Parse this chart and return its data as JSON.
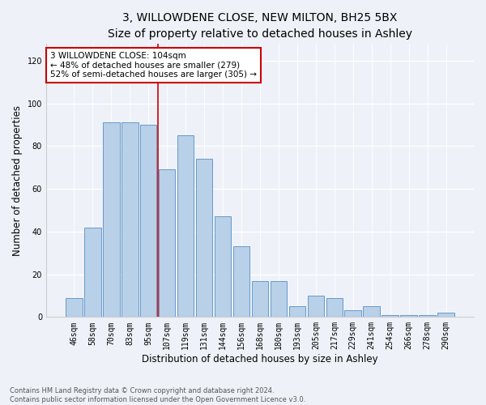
{
  "title": "3, WILLOWDENE CLOSE, NEW MILTON, BH25 5BX",
  "subtitle": "Size of property relative to detached houses in Ashley",
  "xlabel": "Distribution of detached houses by size in Ashley",
  "ylabel": "Number of detached properties",
  "bins": [
    "46sqm",
    "58sqm",
    "70sqm",
    "83sqm",
    "95sqm",
    "107sqm",
    "119sqm",
    "131sqm",
    "144sqm",
    "156sqm",
    "168sqm",
    "180sqm",
    "193sqm",
    "205sqm",
    "217sqm",
    "229sqm",
    "241sqm",
    "254sqm",
    "266sqm",
    "278sqm",
    "290sqm"
  ],
  "bar_heights": [
    9,
    42,
    91,
    91,
    90,
    69,
    85,
    74,
    47,
    33,
    17,
    17,
    5,
    10,
    9,
    3,
    5,
    1,
    1,
    1,
    2
  ],
  "bar_color": "#b8d0e8",
  "bar_edge_color": "#6699cc",
  "annotation_text": "3 WILLOWDENE CLOSE: 104sqm\n← 48% of detached houses are smaller (279)\n52% of semi-detached houses are larger (305) →",
  "annotation_box_color": "#ffffff",
  "annotation_box_edge": "#cc0000",
  "vline_color": "#cc0000",
  "vline_x_index": 4.5,
  "ylim": [
    0,
    128
  ],
  "yticks": [
    0,
    20,
    40,
    60,
    80,
    100,
    120
  ],
  "footer1": "Contains HM Land Registry data © Crown copyright and database right 2024.",
  "footer2": "Contains public sector information licensed under the Open Government Licence v3.0.",
  "bg_color": "#eef2f8",
  "grid_color": "#ffffff",
  "title_fontsize": 10,
  "axis_label_fontsize": 8.5,
  "tick_fontsize": 7,
  "annotation_fontsize": 7.5,
  "footer_fontsize": 6
}
